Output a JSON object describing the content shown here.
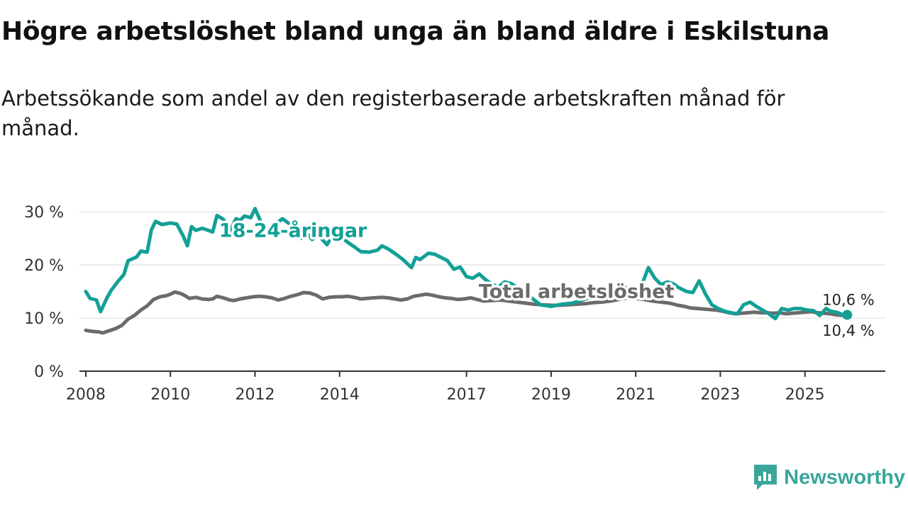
{
  "title": "Högre arbetslöshet bland unga än bland äldre i Eskilstuna",
  "subtitle": "Arbetssökande som andel av den registerbaserade arbetskraften månad för månad.",
  "brand": {
    "name": "Newsworthy"
  },
  "colors": {
    "youth": "#13a096",
    "total": "#6b6b6b",
    "grid": "#d9d9d9",
    "axis": "#333333"
  },
  "chart_data": {
    "type": "line",
    "xlabel": "",
    "ylabel": "",
    "ylim": [
      0,
      32
    ],
    "xlim": [
      2007.85,
      2026.9
    ],
    "y_ticks": [
      {
        "value": 0,
        "label": "0 %"
      },
      {
        "value": 10,
        "label": "10 %"
      },
      {
        "value": 20,
        "label": "20 %"
      },
      {
        "value": 30,
        "label": "30 %"
      }
    ],
    "x_ticks": [
      {
        "value": 2008,
        "label": "2008"
      },
      {
        "value": 2010,
        "label": "2010"
      },
      {
        "value": 2012,
        "label": "2012"
      },
      {
        "value": 2014,
        "label": "2014"
      },
      {
        "value": 2017,
        "label": "2017"
      },
      {
        "value": 2019,
        "label": "2019"
      },
      {
        "value": 2021,
        "label": "2021"
      },
      {
        "value": 2023,
        "label": "2023"
      },
      {
        "value": 2025,
        "label": "2025"
      }
    ],
    "grid": true,
    "series": [
      {
        "name": "18-24-åringar",
        "color": "#13a096",
        "label_anchor": [
          2012.9,
          25.3
        ],
        "end_label": "10,6 %",
        "x": [
          2008.0,
          2008.1,
          2008.25,
          2008.35,
          2008.5,
          2008.6,
          2008.75,
          2008.9,
          2009.0,
          2009.2,
          2009.3,
          2009.45,
          2009.55,
          2009.65,
          2009.8,
          2010.0,
          2010.15,
          2010.3,
          2010.4,
          2010.5,
          2010.6,
          2010.75,
          2010.9,
          2011.0,
          2011.1,
          2011.25,
          2011.4,
          2011.55,
          2011.65,
          2011.75,
          2011.9,
          2012.0,
          2012.15,
          2012.3,
          2012.5,
          2012.65,
          2012.8,
          2013.0,
          2013.1,
          2013.2,
          2013.35,
          2013.5,
          2013.7,
          2013.85,
          2014.0,
          2014.2,
          2014.35,
          2014.5,
          2014.7,
          2014.9,
          2015.0,
          2015.15,
          2015.3,
          2015.5,
          2015.7,
          2015.8,
          2015.9,
          2016.1,
          2016.25,
          2016.4,
          2016.55,
          2016.7,
          2016.85,
          2017.0,
          2017.15,
          2017.3,
          2017.45,
          2017.6,
          2017.75,
          2017.9,
          2018.05,
          2018.25,
          2018.5,
          2018.75,
          2019.0,
          2019.25,
          2019.5,
          2019.75,
          2020.0,
          2020.2,
          2020.4,
          2020.5,
          2020.6,
          2020.75,
          2020.9,
          2021.0,
          2021.15,
          2021.3,
          2021.45,
          2021.6,
          2021.75,
          2021.9,
          2022.0,
          2022.2,
          2022.35,
          2022.5,
          2022.65,
          2022.8,
          2022.95,
          2023.1,
          2023.25,
          2023.4,
          2023.55,
          2023.7,
          2023.85,
          2024.0,
          2024.15,
          2024.3,
          2024.45,
          2024.6,
          2024.75,
          2024.9,
          2025.05,
          2025.2,
          2025.35,
          2025.5,
          2025.6,
          2025.75,
          2025.9,
          2026.0
        ],
        "values": [
          15.0,
          13.7,
          13.4,
          11.2,
          13.8,
          15.2,
          16.8,
          18.2,
          20.8,
          21.5,
          22.6,
          22.4,
          26.6,
          28.2,
          27.6,
          27.9,
          27.7,
          25.5,
          23.6,
          27.2,
          26.5,
          26.9,
          26.5,
          26.2,
          29.3,
          28.6,
          26.2,
          28.7,
          28.4,
          29.2,
          28.9,
          30.6,
          27.9,
          26.2,
          27.8,
          28.7,
          27.8,
          27.5,
          25.0,
          26.2,
          24.8,
          25.6,
          23.8,
          25.8,
          25.5,
          24.2,
          23.4,
          22.5,
          22.4,
          22.8,
          23.6,
          23.0,
          22.2,
          21.0,
          19.5,
          21.4,
          21.0,
          22.2,
          22.0,
          21.4,
          20.8,
          19.2,
          19.6,
          17.8,
          17.5,
          18.3,
          17.2,
          16.4,
          15.8,
          16.8,
          16.5,
          15.5,
          14.0,
          12.5,
          12.2,
          12.6,
          12.8,
          13.4,
          14.2,
          14.0,
          13.6,
          14.5,
          15.2,
          15.8,
          14.8,
          15.5,
          16.4,
          19.5,
          17.5,
          16.3,
          16.8,
          16.4,
          15.8,
          15.0,
          14.8,
          17.0,
          14.5,
          12.5,
          11.8,
          11.3,
          11.0,
          10.8,
          12.5,
          13.0,
          12.2,
          11.5,
          10.8,
          9.9,
          11.8,
          11.5,
          11.8,
          11.8,
          11.5,
          11.4,
          10.5,
          11.8,
          11.3,
          11.1,
          10.6,
          10.6
        ],
        "end_point": true
      },
      {
        "name": "Total arbetslöshet",
        "color": "#6b6b6b",
        "label_anchor": [
          2019.6,
          13.8
        ],
        "end_label": "10,4 %",
        "x": [
          2008.0,
          2008.15,
          2008.3,
          2008.4,
          2008.55,
          2008.7,
          2008.85,
          2009.0,
          2009.15,
          2009.3,
          2009.45,
          2009.6,
          2009.75,
          2009.9,
          2010.0,
          2010.1,
          2010.25,
          2010.35,
          2010.45,
          2010.6,
          2010.75,
          2010.9,
          2011.0,
          2011.1,
          2011.25,
          2011.4,
          2011.5,
          2011.65,
          2011.8,
          2011.95,
          2012.1,
          2012.25,
          2012.4,
          2012.55,
          2012.7,
          2012.85,
          2013.0,
          2013.15,
          2013.3,
          2013.45,
          2013.6,
          2013.75,
          2013.9,
          2014.05,
          2014.2,
          2014.35,
          2014.5,
          2014.65,
          2014.8,
          2015.0,
          2015.15,
          2015.3,
          2015.45,
          2015.6,
          2015.75,
          2015.9,
          2016.05,
          2016.2,
          2016.35,
          2016.5,
          2016.65,
          2016.8,
          2016.95,
          2017.1,
          2017.25,
          2017.4,
          2017.6,
          2017.8,
          2018.0,
          2018.2,
          2018.4,
          2018.6,
          2018.8,
          2019.0,
          2019.2,
          2019.4,
          2019.6,
          2019.8,
          2020.0,
          2020.2,
          2020.4,
          2020.6,
          2020.8,
          2021.0,
          2021.2,
          2021.4,
          2021.6,
          2021.8,
          2022.0,
          2022.15,
          2022.3,
          2022.45,
          2022.6,
          2022.75,
          2022.9,
          2023.05,
          2023.2,
          2023.35,
          2023.5,
          2023.65,
          2023.8,
          2023.95,
          2024.1,
          2024.25,
          2024.4,
          2024.55,
          2024.7,
          2024.85,
          2025.0,
          2025.15,
          2025.3,
          2025.45,
          2025.6,
          2025.75,
          2025.9,
          2026.0
        ],
        "values": [
          7.7,
          7.5,
          7.4,
          7.2,
          7.6,
          8.0,
          8.6,
          9.8,
          10.5,
          11.5,
          12.3,
          13.5,
          14.0,
          14.2,
          14.5,
          14.9,
          14.6,
          14.2,
          13.7,
          13.9,
          13.6,
          13.5,
          13.6,
          14.1,
          13.8,
          13.4,
          13.3,
          13.6,
          13.8,
          14.0,
          14.1,
          14.0,
          13.8,
          13.4,
          13.7,
          14.1,
          14.4,
          14.8,
          14.7,
          14.3,
          13.6,
          13.9,
          14.0,
          14.0,
          14.1,
          13.9,
          13.6,
          13.7,
          13.8,
          13.9,
          13.8,
          13.6,
          13.4,
          13.6,
          14.1,
          14.3,
          14.5,
          14.3,
          14.0,
          13.8,
          13.7,
          13.5,
          13.6,
          13.8,
          13.5,
          13.2,
          13.3,
          13.4,
          13.2,
          13.0,
          12.8,
          12.6,
          12.5,
          12.4,
          12.4,
          12.5,
          12.6,
          12.7,
          12.9,
          13.0,
          13.2,
          13.5,
          13.8,
          13.7,
          13.5,
          13.2,
          13.0,
          12.8,
          12.4,
          12.2,
          11.9,
          11.8,
          11.7,
          11.6,
          11.5,
          11.3,
          11.0,
          10.8,
          10.9,
          11.0,
          11.1,
          11.0,
          11.0,
          10.9,
          11.0,
          10.8,
          10.9,
          11.0,
          11.1,
          11.2,
          11.0,
          10.9,
          10.8,
          10.6,
          10.5,
          10.4
        ],
        "end_point": true
      }
    ]
  }
}
